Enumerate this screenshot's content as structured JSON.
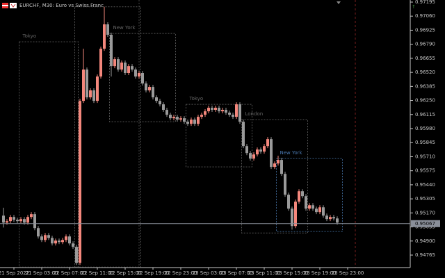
{
  "chart_data": {
    "type": "candlestick",
    "title": "EURCHF, M30:  Euro vs Swiss Franc",
    "categories": [
      null,
      null,
      null,
      "21 Sep 2022",
      null,
      null,
      null,
      null,
      null,
      null,
      null,
      "21 Sep 03:00",
      null,
      null,
      null,
      null,
      null,
      null,
      null,
      "22 Sep 07:00",
      null,
      null,
      null,
      null,
      null,
      null,
      null,
      "22 Sep 11:00",
      null,
      null,
      null,
      null,
      null,
      null,
      null,
      "22 Sep 15:00",
      null,
      null,
      null,
      null,
      null,
      null,
      null,
      "22 Sep 19:00",
      null,
      null,
      null,
      null,
      null,
      null,
      null,
      "22 Sep 23:00",
      null,
      null,
      null,
      null,
      null,
      null,
      null,
      "23 Sep 03:00",
      null,
      null,
      null,
      null,
      null,
      null,
      null,
      "23 Sep 07:00",
      null,
      null,
      null,
      null,
      null,
      null,
      null,
      "23 Sep 11:00",
      null,
      null,
      null,
      null,
      null,
      null,
      null,
      "23 Sep 15:00",
      null,
      null,
      null,
      null,
      null,
      null,
      null,
      "23 Sep 19:00",
      null,
      null,
      null,
      null,
      null,
      null,
      null,
      "23 Sep 23:00"
    ],
    "open": [
      0.95144,
      0.95077,
      0.95091,
      0.95131,
      0.95104,
      0.95091,
      0.95111,
      0.95077,
      0.95131,
      0.95158,
      0.95024,
      0.94944,
      0.9491,
      0.94957,
      0.9493,
      0.94877,
      0.94904,
      0.9489,
      0.9491,
      0.94944,
      0.94877,
      0.94844,
      0.9469,
      0.96246,
      0.96547,
      0.9628,
      0.96347,
      0.96246,
      0.9648,
      0.96747,
      0.96981,
      0.96881,
      0.9658,
      0.96647,
      0.96547,
      0.96614,
      0.96514,
      0.9658,
      0.96547,
      0.9648,
      0.96514,
      0.96413,
      0.96347,
      0.9638,
      0.9628,
      0.96246,
      0.96213,
      0.9616,
      0.96113,
      0.96079,
      0.96093,
      0.96066,
      0.96079,
      0.96046,
      0.96026,
      0.96066,
      0.96026,
      0.96093,
      0.96113,
      0.96146,
      0.9618,
      0.9616,
      0.9618,
      0.96146,
      0.9616,
      0.96133,
      0.96113,
      0.96093,
      0.96213,
      0.96046,
      0.95812,
      0.95745,
      0.95692,
      0.95732,
      0.95779,
      0.95759,
      0.95812,
      0.95879,
      0.95612,
      0.95645,
      0.95679,
      0.95545,
      0.95345,
      0.95211,
      0.95044,
      0.95278,
      0.95378,
      0.95331,
      0.95211,
      0.95244,
      0.95211,
      0.95178,
      0.95224,
      0.95144,
      0.95111,
      0.95131,
      0.95117,
      null,
      null,
      null
    ],
    "high": [
      0.9522,
      0.95111,
      0.95151,
      0.95151,
      0.95124,
      0.95131,
      0.95131,
      0.95151,
      0.95178,
      0.95178,
      0.95044,
      0.94964,
      0.94977,
      0.94977,
      0.9495,
      0.94924,
      0.94924,
      0.9493,
      0.94964,
      0.94964,
      0.94897,
      0.94864,
      0.96266,
      0.96747,
      0.96567,
      0.96367,
      0.96367,
      0.965,
      0.96767,
      0.9715,
      0.97001,
      0.96901,
      0.96667,
      0.96667,
      0.96634,
      0.96634,
      0.966,
      0.966,
      0.96567,
      0.96534,
      0.96534,
      0.96433,
      0.964,
      0.964,
      0.963,
      0.96266,
      0.96233,
      0.9618,
      0.96133,
      0.96113,
      0.96113,
      0.96099,
      0.96099,
      0.96066,
      0.96086,
      0.96086,
      0.96113,
      0.96133,
      0.96166,
      0.962,
      0.962,
      0.962,
      0.962,
      0.9618,
      0.9618,
      0.96153,
      0.96133,
      0.96233,
      0.96233,
      0.96066,
      0.95832,
      0.95765,
      0.95752,
      0.95799,
      0.95799,
      0.95832,
      0.95899,
      0.95899,
      0.95665,
      0.9572,
      0.95699,
      0.95565,
      0.95365,
      0.95231,
      0.95298,
      0.95398,
      0.95398,
      0.95351,
      0.95264,
      0.95264,
      0.95231,
      0.95244,
      0.95244,
      0.95164,
      0.95151,
      0.95151,
      0.95137,
      null,
      null,
      null
    ],
    "low": [
      0.9503,
      0.95057,
      0.95071,
      0.95084,
      0.95071,
      0.95071,
      0.95057,
      0.95057,
      0.95111,
      0.95004,
      0.94924,
      0.9489,
      0.9489,
      0.9491,
      0.94857,
      0.94857,
      0.9487,
      0.9487,
      0.9489,
      0.94857,
      0.94824,
      0.9467,
      0.9467,
      0.96226,
      0.9626,
      0.9626,
      0.96226,
      0.96226,
      0.9646,
      0.96727,
      0.96861,
      0.9648,
      0.9656,
      0.96527,
      0.96527,
      0.96494,
      0.96494,
      0.96527,
      0.9646,
      0.9646,
      0.96393,
      0.96327,
      0.96327,
      0.9626,
      0.96226,
      0.96193,
      0.9614,
      0.96093,
      0.96059,
      0.96059,
      0.96046,
      0.96046,
      0.96026,
      0.96006,
      0.96006,
      0.96006,
      0.96006,
      0.96073,
      0.96093,
      0.96126,
      0.9614,
      0.9614,
      0.96126,
      0.96126,
      0.96113,
      0.96093,
      0.96073,
      0.96073,
      0.96026,
      0.95792,
      0.95725,
      0.95672,
      0.95672,
      0.95712,
      0.95739,
      0.95739,
      0.95792,
      0.95592,
      0.95592,
      0.95625,
      0.95525,
      0.95325,
      0.95191,
      0.9501,
      0.95024,
      0.95258,
      0.95311,
      0.95191,
      0.95191,
      0.95191,
      0.95158,
      0.95158,
      0.95124,
      0.95091,
      0.95091,
      0.95097,
      0.95057,
      null,
      null,
      null
    ],
    "close": [
      0.95077,
      0.95091,
      0.95131,
      0.95104,
      0.95091,
      0.95111,
      0.95077,
      0.95131,
      0.95158,
      0.95024,
      0.94944,
      0.9491,
      0.94957,
      0.9493,
      0.94877,
      0.94904,
      0.9489,
      0.9491,
      0.94944,
      0.94877,
      0.94844,
      0.9469,
      0.96246,
      0.96547,
      0.9628,
      0.96347,
      0.96246,
      0.9648,
      0.96747,
      0.96981,
      0.96881,
      0.9658,
      0.96647,
      0.96547,
      0.96614,
      0.96514,
      0.9658,
      0.96547,
      0.9648,
      0.96514,
      0.96413,
      0.96347,
      0.9638,
      0.9628,
      0.96246,
      0.96213,
      0.9616,
      0.96113,
      0.96079,
      0.96093,
      0.96066,
      0.96079,
      0.96046,
      0.96026,
      0.96066,
      0.96026,
      0.96093,
      0.96113,
      0.96146,
      0.9618,
      0.9616,
      0.9618,
      0.96146,
      0.9616,
      0.96133,
      0.96113,
      0.96093,
      0.96213,
      0.96046,
      0.95812,
      0.95745,
      0.95692,
      0.95732,
      0.95779,
      0.95759,
      0.95812,
      0.95879,
      0.95612,
      0.95645,
      0.95679,
      0.95545,
      0.95345,
      0.95211,
      0.95044,
      0.95278,
      0.95378,
      0.95331,
      0.95211,
      0.95244,
      0.95211,
      0.95178,
      0.95224,
      0.95144,
      0.95111,
      0.95131,
      0.95117,
      0.95077,
      null,
      null,
      null
    ],
    "up_color": "#f4877c",
    "down_color": "#9a9a9a",
    "ylim": [
      0.94645,
      0.97215
    ],
    "yticks": [
      0.97195,
      {
        "value": 0.9706,
        "label": "0.97060"
      },
      0.96925,
      {
        "value": 0.9679,
        "label": "0.96790"
      },
      0.96655,
      {
        "value": 0.9652,
        "label": "0.96520"
      },
      0.96385,
      {
        "value": 0.9625,
        "label": "0.96250"
      },
      0.96115,
      {
        "value": 0.9598,
        "label": "0.95980"
      },
      0.95845,
      {
        "value": 0.9571,
        "label": "0.95710"
      },
      0.95575,
      {
        "value": 0.9544,
        "label": "0.95440"
      },
      0.95305,
      {
        "value": 0.9517,
        "label": "0.95170"
      },
      0.95035,
      {
        "value": 0.949,
        "label": "0.94900"
      },
      0.94765
    ],
    "current_price": 0.95067,
    "sessions": [
      {
        "label": "Tokyo",
        "start": 5,
        "end": 21,
        "high": 0.96814,
        "low": 0.9465,
        "color": "#555555"
      },
      {
        "start": 21,
        "end": 39,
        "high": 0.9715,
        "low": 0.9465,
        "color": "#555555"
      },
      {
        "label": "New York",
        "start": 31,
        "end": 49,
        "high": 0.96894,
        "low": 0.96046,
        "color": "#555555"
      },
      {
        "label": "Tokyo",
        "start": 53,
        "end": 71,
        "high": 0.96213,
        "low": 0.95612,
        "color": "#555555"
      },
      {
        "label": "London",
        "start": 69,
        "end": 87,
        "high": 0.96066,
        "low": 0.94977,
        "color": "#555555"
      },
      {
        "label": "New York",
        "start": 79,
        "end": 97,
        "high": 0.95692,
        "low": 0.94991,
        "color": "#3a5f8a"
      }
    ]
  }
}
